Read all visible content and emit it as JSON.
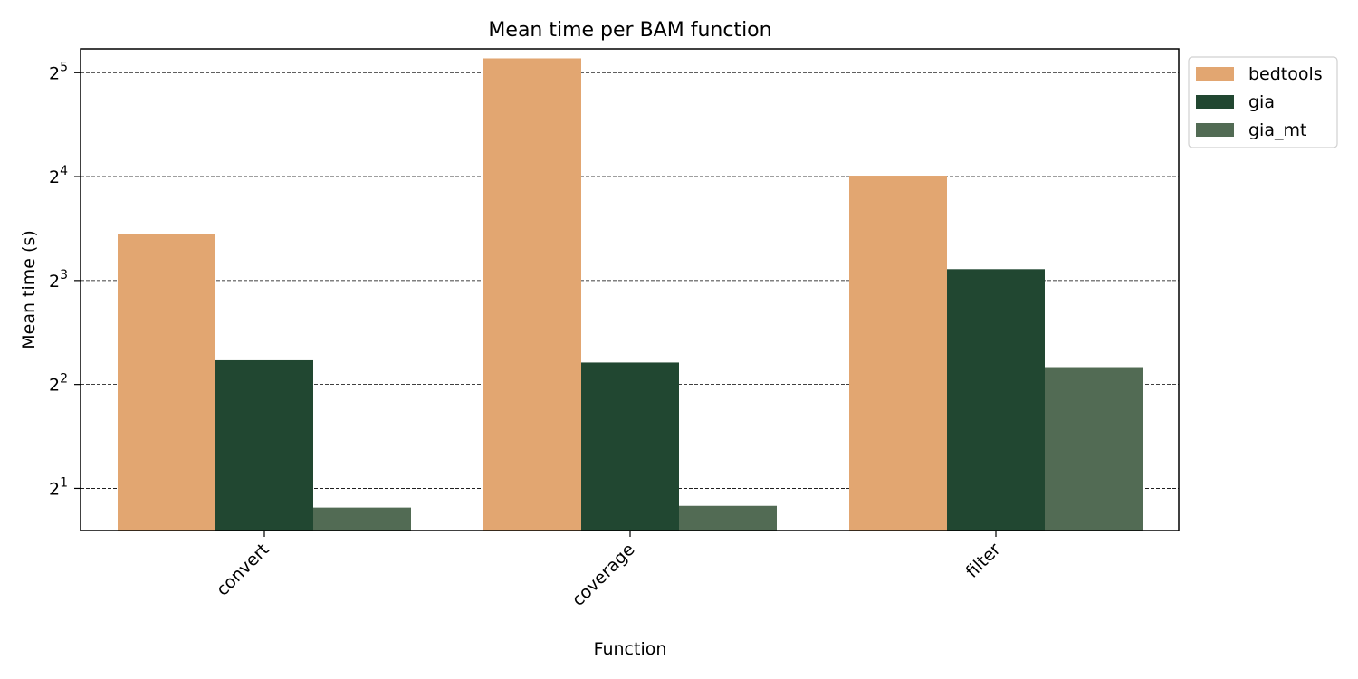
{
  "chart_data": {
    "type": "bar",
    "title": "Mean time per BAM function",
    "xlabel": "Function",
    "ylabel": "Mean time (s)",
    "yscale": "log2",
    "ylim": [
      1.51,
      37.5
    ],
    "yticks": [
      {
        "base": "2",
        "exp": "1",
        "value": 2
      },
      {
        "base": "2",
        "exp": "2",
        "value": 4
      },
      {
        "base": "2",
        "exp": "3",
        "value": 8
      },
      {
        "base": "2",
        "exp": "4",
        "value": 16
      },
      {
        "base": "2",
        "exp": "5",
        "value": 32
      }
    ],
    "grid": "y-major dashed",
    "legend_position": "upper right, outside plot",
    "categories": [
      "convert",
      "coverage",
      "filter"
    ],
    "series": [
      {
        "name": "bedtools",
        "color": "#e2a671",
        "values": [
          10.9,
          35.2,
          16.1
        ]
      },
      {
        "name": "gia",
        "color": "#214731",
        "values": [
          4.7,
          4.63,
          8.63
        ]
      },
      {
        "name": "gia_mt",
        "color": "#526b54",
        "values": [
          1.76,
          1.78,
          4.49
        ]
      }
    ]
  }
}
